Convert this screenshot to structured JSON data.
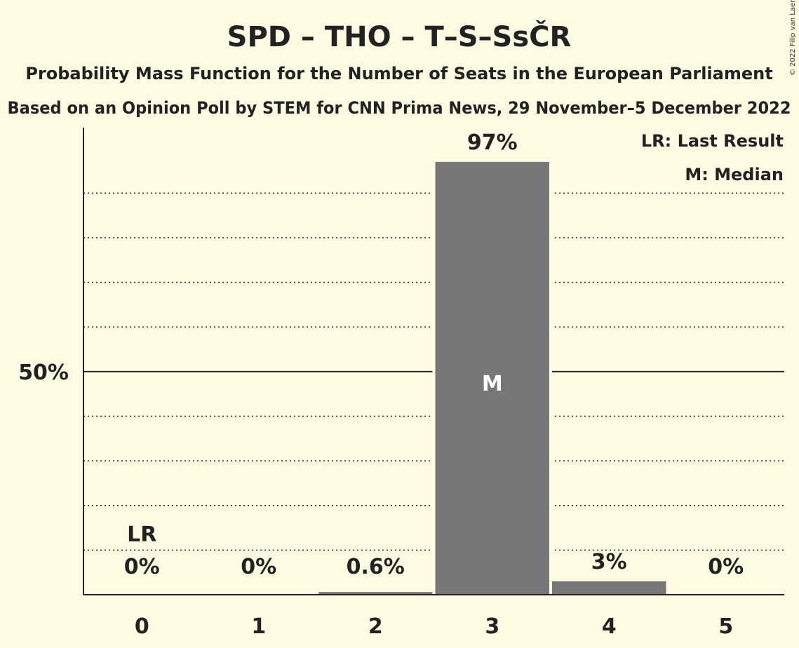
{
  "header": {
    "title": "SPD – THO – T–S–SsČR",
    "subtitle": "Probability Mass Function for the Number of Seats in the European Parliament",
    "source": "Based on an Opinion Poll by STEM for CNN Prima News, 29 November–5 December 2022"
  },
  "legend": {
    "last_result": "LR: Last Result",
    "median": "M: Median"
  },
  "credit": "© 2022 Filip van Laenen",
  "colors": {
    "background": "#fefbe2",
    "bar": "#777777",
    "text": "#222222",
    "median_mark": "#ffffff"
  },
  "chart_data": {
    "type": "bar",
    "categories": [
      "0",
      "1",
      "2",
      "3",
      "4",
      "5"
    ],
    "values": [
      0,
      0,
      0.6,
      97,
      3,
      0
    ],
    "value_labels": [
      "0%",
      "0%",
      "0.6%",
      "97%",
      "3%",
      "0%"
    ],
    "ylim": [
      0,
      105
    ],
    "y_tick_label": "50%",
    "y_tick_value": 50,
    "dotted_gridlines": [
      10,
      20,
      30,
      40,
      60,
      70,
      80,
      90
    ],
    "last_result_category": "0",
    "last_result_mark": "LR",
    "median_category": "3",
    "median_mark": "M",
    "median_mark_value": 47.5
  }
}
